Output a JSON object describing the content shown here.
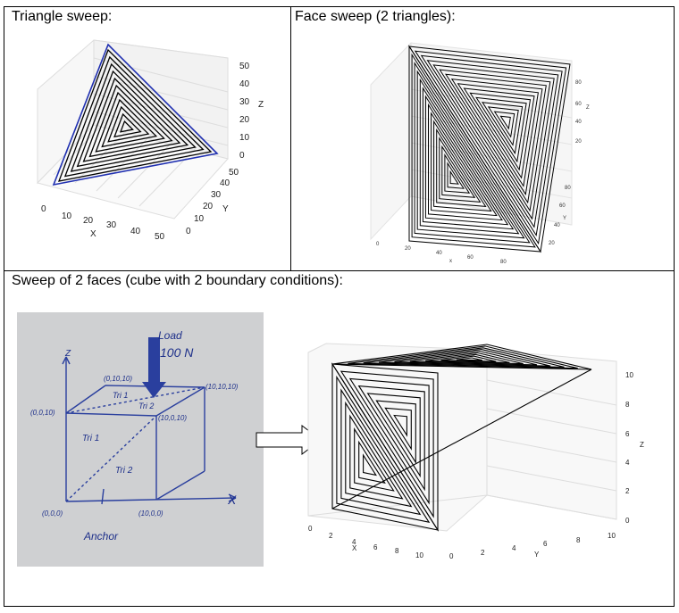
{
  "cells": {
    "triangle_sweep": {
      "title": "Triangle sweep:"
    },
    "face_sweep": {
      "title": "Face sweep (2 triangles):"
    },
    "two_faces": {
      "title": "Sweep of 2 faces (cube with 2 boundary conditions):"
    }
  },
  "plot1": {
    "x_ticks": [
      "0",
      "10",
      "20",
      "30",
      "40",
      "50"
    ],
    "y_ticks": [
      "0",
      "10",
      "20",
      "30",
      "40",
      "50"
    ],
    "z_ticks": [
      "0",
      "10",
      "20",
      "30",
      "40",
      "50"
    ],
    "xlabel": "X",
    "ylabel": "Y",
    "zlabel": "Z"
  },
  "plot2": {
    "x_ticks": [
      "0",
      "20",
      "40",
      "60",
      "80"
    ],
    "y_ticks": [
      "20",
      "40",
      "60",
      "80"
    ],
    "z_ticks": [
      "20",
      "40",
      "60",
      "80"
    ],
    "xlabel": "x",
    "ylabel": "Y",
    "zlabel": "Z"
  },
  "sketch": {
    "load_label": "Load",
    "load_value": "100 N",
    "axis_z": "Z",
    "axis_x": "X",
    "corner_0010": "(0,0,10)",
    "corner_01010": "(0,10,10)",
    "corner_101010": "(10,10,10)",
    "corner_10010": "(10,0,10)",
    "corner_000": "(0,0,0)",
    "corner_1000": "(10,0,0)",
    "tri1_top": "Tri 1",
    "tri2_top": "Tri 2",
    "tri1_front": "Tri 1",
    "tri2_front": "Tri 2",
    "anchor": "Anchor"
  },
  "plot3": {
    "x_ticks": [
      "0",
      "2",
      "4",
      "6",
      "8",
      "10"
    ],
    "y_ticks": [
      "0",
      "2",
      "4",
      "6",
      "8",
      "10"
    ],
    "z_ticks": [
      "0",
      "2",
      "4",
      "6",
      "8",
      "10"
    ],
    "xlabel": "X",
    "ylabel": "Y",
    "zlabel": "Z"
  },
  "colors": {
    "pen_blue": "#2a3f9e",
    "triangle_outline": "#1f2fb0"
  }
}
